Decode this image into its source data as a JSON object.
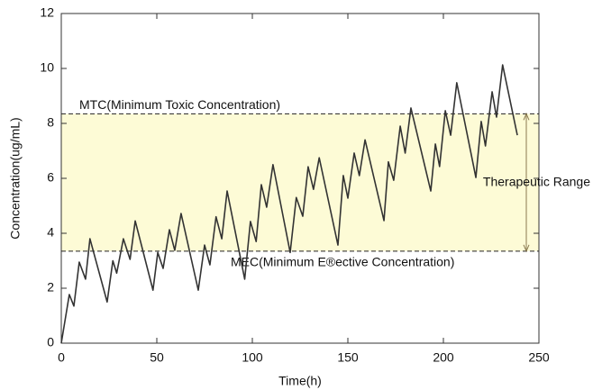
{
  "chart_data": {
    "type": "line",
    "xlabel": "Time(h)",
    "ylabel": "Concentration(ug/mL)",
    "x": [
      0,
      4.2,
      6.6,
      9.4,
      12.7,
      15,
      24,
      27,
      29,
      32.5,
      36,
      38.7,
      48,
      50.5,
      53.3,
      56.6,
      59.4,
      62.7,
      71.7,
      75,
      77.8,
      81,
      84,
      86.8,
      96,
      99,
      102,
      104.7,
      107.5,
      110.8,
      119.8,
      123,
      126.4,
      129.2,
      132,
      135,
      144.8,
      147.6,
      150,
      153.3,
      156,
      159,
      168.9,
      171.2,
      174,
      177.4,
      180,
      183,
      193.4,
      195.8,
      198,
      201,
      203.8,
      207,
      217,
      219.8,
      222,
      225.5,
      227.8,
      231,
      238.7
    ],
    "series": [
      {
        "color": "#333333",
        "values": [
          0,
          1.77,
          1.35,
          2.95,
          2.33,
          3.8,
          1.5,
          3.0,
          2.55,
          3.8,
          3.05,
          4.45,
          1.93,
          3.3,
          2.72,
          4.13,
          3.38,
          4.72,
          1.93,
          3.57,
          2.85,
          4.6,
          3.8,
          5.54,
          2.33,
          4.43,
          3.7,
          5.77,
          4.95,
          6.5,
          3.3,
          5.3,
          4.62,
          6.42,
          5.6,
          6.75,
          3.57,
          6.1,
          5.28,
          6.92,
          6.1,
          7.4,
          4.46,
          6.6,
          5.93,
          7.9,
          6.92,
          8.56,
          5.54,
          7.25,
          6.43,
          8.46,
          7.57,
          9.48,
          6.03,
          8.07,
          7.18,
          9.15,
          8.23,
          10.13,
          7.57
        ]
      }
    ],
    "xlim": [
      0,
      250
    ],
    "xticks": [
      0,
      50,
      100,
      150,
      200,
      250
    ],
    "ylim": [
      0,
      12
    ],
    "yticks": [
      0,
      2,
      4,
      6,
      8,
      10,
      12
    ],
    "band": {
      "label": "Therapeutic Range",
      "from": 3.35,
      "to": 8.35,
      "color": "#fdfbd6"
    },
    "annotations": [
      {
        "text": "MTC(Minimum Toxic Concentration)",
        "y": 8.35
      },
      {
        "text": "MEC(Minimum E®ective Concentration)",
        "y": 3.35
      }
    ]
  }
}
